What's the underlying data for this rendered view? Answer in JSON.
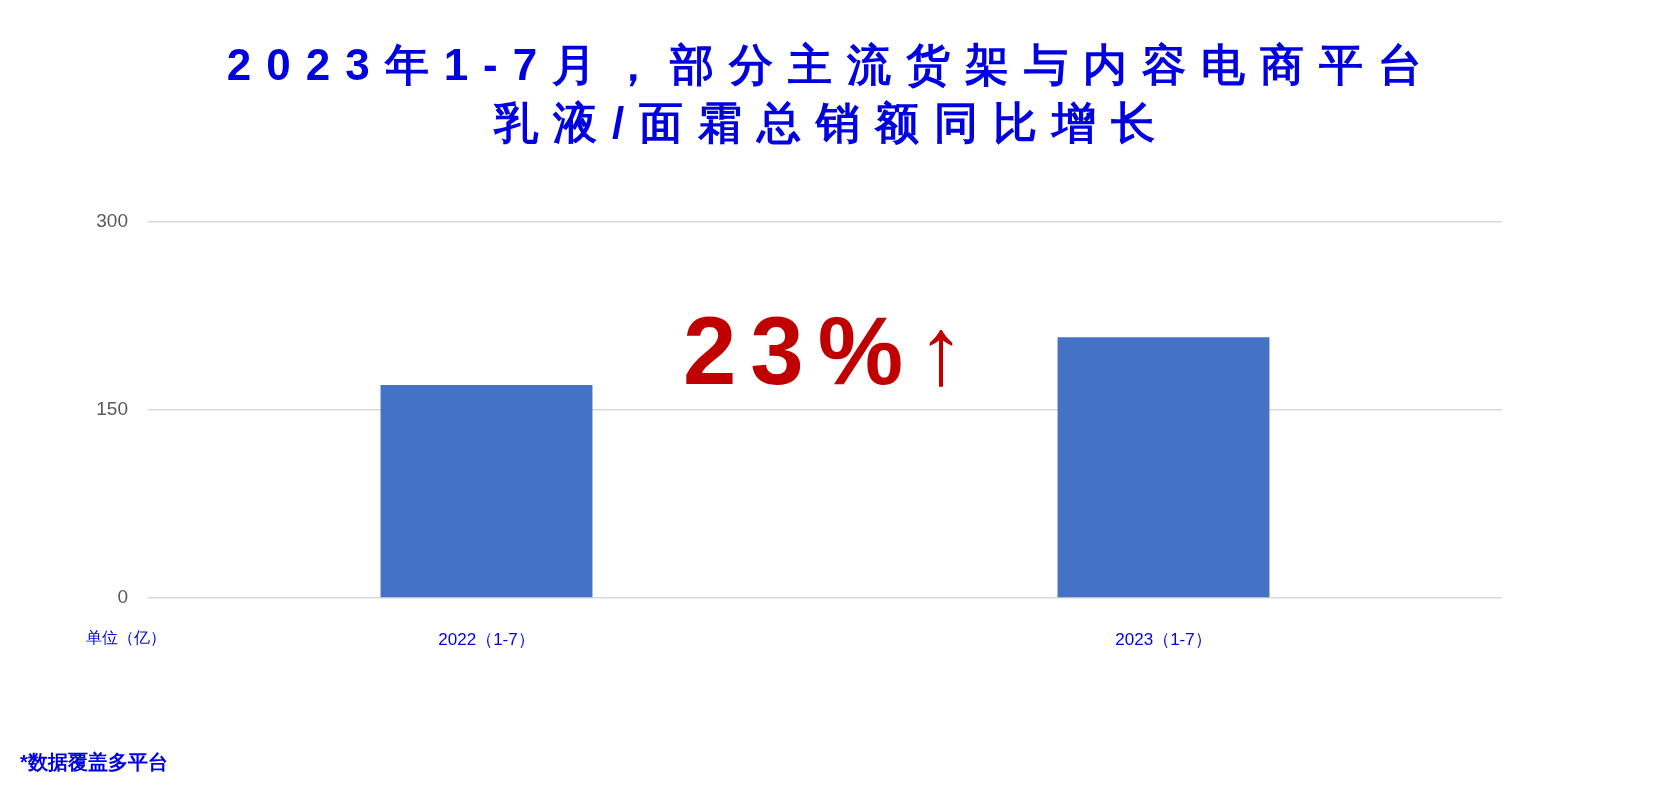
{
  "chart_data": {
    "type": "bar",
    "title": "2023年1-7月，部分主流货架与内容电商平台乳液/面霜总销额同比增长",
    "ylabel": "单位（亿）",
    "categories": [
      "2022（1-7）",
      "2023（1-7）"
    ],
    "values": [
      170,
      208
    ],
    "color": "#4472c4",
    "ylim": [
      0,
      300
    ],
    "yticks": [
      0,
      150,
      300
    ],
    "grid": "y",
    "annotations": [
      "23%↑",
      "*数据覆盖多平台"
    ]
  }
}
